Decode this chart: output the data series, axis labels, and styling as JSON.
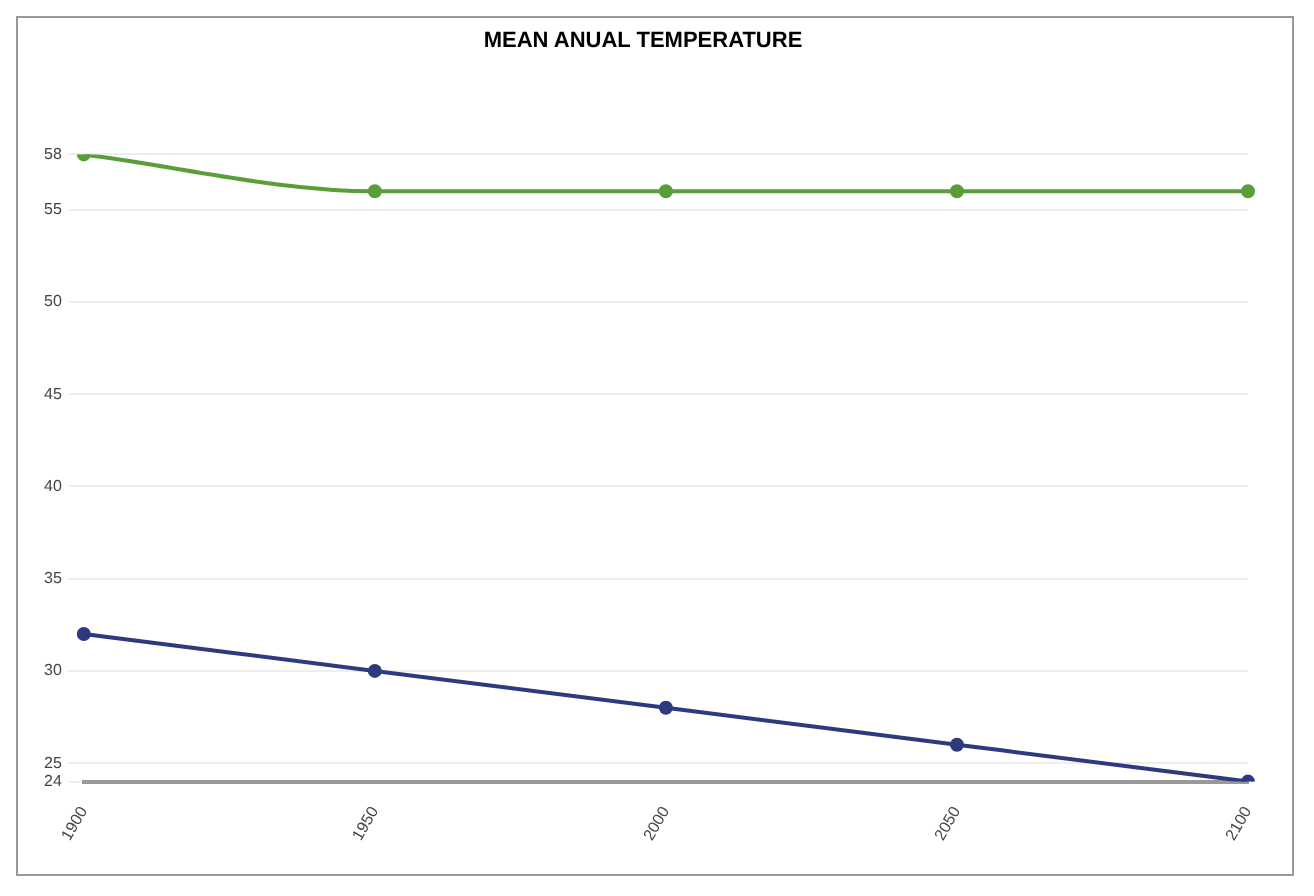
{
  "chart_data": {
    "type": "line",
    "title": "MEAN ANUAL TEMPERATURE",
    "categories": [
      "1900",
      "1950",
      "2000",
      "2050",
      "2100"
    ],
    "series": [
      {
        "color": "#5a9e3a",
        "values": [
          58,
          56,
          56,
          56,
          56
        ]
      },
      {
        "color": "#2e3a80",
        "values": [
          32,
          30,
          28,
          26,
          24
        ]
      }
    ],
    "ylim": [
      24,
      58
    ],
    "yticks": [
      24,
      25,
      30,
      35,
      40,
      45,
      50,
      55,
      58
    ],
    "grid": "y",
    "legend": false,
    "marker": "circle",
    "line_style": "solid"
  }
}
